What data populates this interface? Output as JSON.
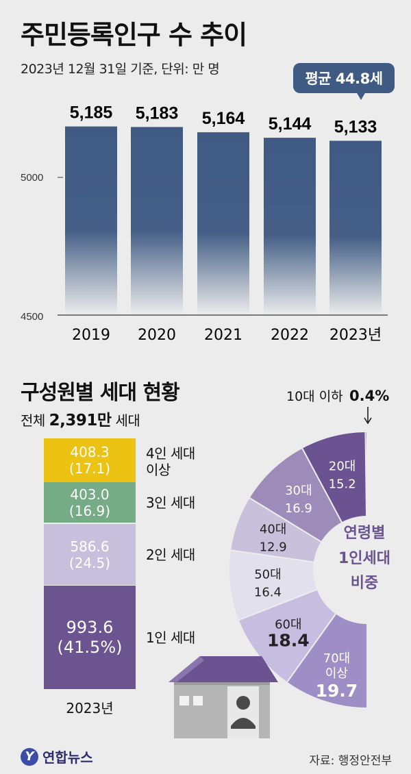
{
  "title": "주민등록인구 수 추이",
  "subtitle": "2023년 12월 31일 기준, 단위: 만 명",
  "badge": "평균 44.8세",
  "chart_data": [
    {
      "type": "bar",
      "title": "주민등록인구 수 추이",
      "categories": [
        "2019",
        "2020",
        "2021",
        "2022",
        "2023년"
      ],
      "values": [
        5185,
        5183,
        5164,
        5144,
        5133
      ],
      "value_labels": [
        "5,185",
        "5,183",
        "5,164",
        "5,144",
        "5,133"
      ],
      "yticks": [
        "5000",
        "4500"
      ],
      "ylim": [
        4500,
        5200
      ],
      "color": "#3f5a83"
    },
    {
      "type": "bar",
      "title": "구성원별 세대 현황",
      "stacked": true,
      "categories": [
        "2023년"
      ],
      "segments": [
        {
          "name": "4인 세대 이상",
          "label1": "4인 세대",
          "label2": "이상",
          "value": "408.3",
          "pct": "(17.1)",
          "color": "#ecc213"
        },
        {
          "name": "3인 세대",
          "label1": "3인 세대",
          "label2": "",
          "value": "403.0",
          "pct": "(16.9)",
          "color": "#75ab85"
        },
        {
          "name": "2인 세대",
          "label1": "2인 세대",
          "label2": "",
          "value": "586.6",
          "pct": "(24.5)",
          "color": "#c6c0dc"
        },
        {
          "name": "1인 세대",
          "label1": "1인 세대",
          "label2": "",
          "value": "993.6",
          "pct": "(41.5%)",
          "color": "#6c5491"
        }
      ]
    },
    {
      "type": "pie",
      "title": "연령별 1인세대 비중",
      "center_label": [
        "연령별",
        "1인세대",
        "비중"
      ],
      "categories": [
        "10대 이하",
        "20대",
        "30대",
        "40대",
        "50대",
        "60대",
        "70대 이상"
      ],
      "values": [
        0.4,
        15.2,
        16.9,
        12.9,
        16.4,
        18.4,
        19.7
      ],
      "value_labels": [
        "0.4%",
        "15.2",
        "16.9",
        "12.9",
        "16.4",
        "18.4",
        "19.7"
      ],
      "colors": [
        "#6b5392",
        "#6b5392",
        "#9d8bb9",
        "#c9c0db",
        "#e3e0ee",
        "#c6bde0",
        "#9d8fc6"
      ]
    }
  ],
  "section2": {
    "title": "구성원별 세대 현황",
    "sub_prefix": "전체",
    "sub_value": "2,391만",
    "sub_suffix": "세대",
    "year": "2023년"
  },
  "source": "자료: 행정안전부",
  "logo": {
    "mark": "Y",
    "text": "연합뉴스"
  }
}
